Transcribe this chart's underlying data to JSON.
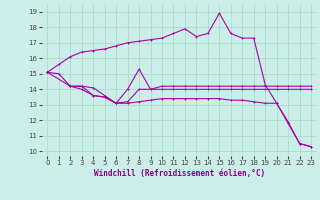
{
  "background_color": "#cceee8",
  "grid_color": "#aaddcc",
  "line_color": "#aa00aa",
  "xlabel": "Windchill (Refroidissement éolien,°C)",
  "xlim": [
    -0.5,
    23.5
  ],
  "ylim": [
    9.7,
    19.5
  ],
  "xticks": [
    0,
    1,
    2,
    3,
    4,
    5,
    6,
    7,
    8,
    9,
    10,
    11,
    12,
    13,
    14,
    15,
    16,
    17,
    18,
    19,
    20,
    21,
    22,
    23
  ],
  "yticks": [
    10,
    11,
    12,
    13,
    14,
    15,
    16,
    17,
    18,
    19
  ],
  "line1_x": [
    0,
    1,
    2,
    3,
    4,
    5,
    6,
    7,
    8,
    9,
    10,
    11,
    12,
    13,
    14,
    15,
    16,
    17,
    18,
    19,
    20,
    21,
    22,
    23
  ],
  "line1_y": [
    15.1,
    15.6,
    16.1,
    16.4,
    16.5,
    16.6,
    16.8,
    17.0,
    17.1,
    17.2,
    17.3,
    17.6,
    17.9,
    17.4,
    17.6,
    18.9,
    17.6,
    17.3,
    17.3,
    14.3,
    13.1,
    11.9,
    10.5,
    10.3
  ],
  "line2_x": [
    2,
    3,
    4,
    5,
    6,
    7,
    8,
    9,
    10,
    11,
    12,
    13,
    14,
    15,
    16,
    17,
    18,
    19,
    20,
    21,
    22,
    23
  ],
  "line2_y": [
    14.2,
    14.2,
    14.1,
    13.6,
    13.1,
    14.0,
    15.3,
    14.0,
    14.2,
    14.2,
    14.2,
    14.2,
    14.2,
    14.2,
    14.2,
    14.2,
    14.2,
    14.2,
    14.2,
    14.2,
    14.2,
    14.2
  ],
  "line3_x": [
    0,
    2,
    3,
    4,
    5,
    6,
    7,
    8,
    9,
    10,
    11,
    12,
    13,
    14,
    15,
    16,
    17,
    18,
    19,
    20,
    21,
    22,
    23
  ],
  "line3_y": [
    15.1,
    14.2,
    14.2,
    13.6,
    13.5,
    13.1,
    13.2,
    14.0,
    14.0,
    14.0,
    14.0,
    14.0,
    14.0,
    14.0,
    14.0,
    14.0,
    14.0,
    14.0,
    14.0,
    14.0,
    14.0,
    14.0,
    14.0
  ],
  "line4_x": [
    0,
    1,
    2,
    3,
    4,
    5,
    6,
    7,
    8,
    9,
    10,
    11,
    12,
    13,
    14,
    15,
    16,
    17,
    18,
    19,
    20,
    21,
    22,
    23
  ],
  "line4_y": [
    15.1,
    15.0,
    14.2,
    14.0,
    13.6,
    13.5,
    13.1,
    13.1,
    13.2,
    13.3,
    13.4,
    13.4,
    13.4,
    13.4,
    13.4,
    13.4,
    13.3,
    13.3,
    13.2,
    13.1,
    13.1,
    11.8,
    10.5,
    10.3
  ]
}
